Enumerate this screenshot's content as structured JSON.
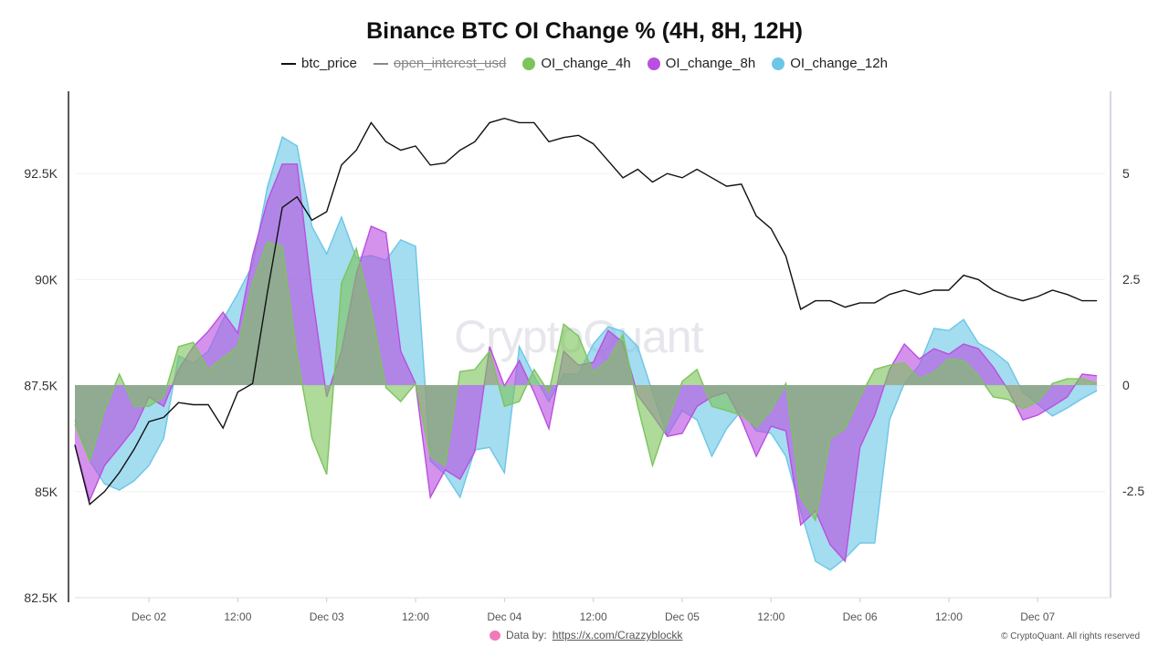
{
  "title": "Binance BTC OI Change % (4H, 8H, 12H)",
  "legend": [
    {
      "label": "btc_price",
      "kind": "line",
      "color": "#111111",
      "hidden": false
    },
    {
      "label": "open_interest_usd",
      "kind": "line",
      "color": "#888888",
      "hidden": true
    },
    {
      "label": "OI_change_4h",
      "kind": "dot",
      "color": "#7cc45c",
      "hidden": false
    },
    {
      "label": "OI_change_8h",
      "kind": "dot",
      "color": "#b94fe0",
      "hidden": false
    },
    {
      "label": "OI_change_12h",
      "kind": "dot",
      "color": "#6cc6e6",
      "hidden": false
    }
  ],
  "watermark": "CryptoQuant",
  "footer": {
    "data_by_label": "Data by:",
    "data_by_link": "https://x.com/Crazzyblockk",
    "copyright": "© CryptoQuant. All rights reserved"
  },
  "chart_data": {
    "type": "line+area",
    "title": "Binance BTC OI Change % (4H, 8H, 12H)",
    "x_ticks": [
      "Dec 02",
      "12:00",
      "Dec 03",
      "12:00",
      "Dec 04",
      "12:00",
      "Dec 05",
      "12:00",
      "Dec 06",
      "12:00",
      "Dec 07"
    ],
    "left_axis": {
      "ticks": [
        "82.5K",
        "85K",
        "87.5K",
        "90K",
        "92.5K"
      ],
      "tick_values": [
        82.5,
        85,
        87.5,
        90,
        92.5
      ],
      "ylim": [
        82.5,
        94.44
      ],
      "unit": "K USD"
    },
    "right_axis": {
      "ticks": [
        "-2.5",
        "0",
        "2.5",
        "5"
      ],
      "tick_values": [
        -2.5,
        0,
        2.5,
        5
      ],
      "ylim": [
        -5.02,
        6.94
      ]
    },
    "grid": true,
    "legend_position": "top",
    "x": [
      "12-01 14:00",
      "12-01 16:00",
      "12-01 18:00",
      "12-01 20:00",
      "12-01 22:00",
      "12-02 00:00",
      "12-02 02:00",
      "12-02 04:00",
      "12-02 06:00",
      "12-02 08:00",
      "12-02 10:00",
      "12-02 12:00",
      "12-02 14:00",
      "12-02 16:00",
      "12-02 18:00",
      "12-02 20:00",
      "12-02 22:00",
      "12-03 00:00",
      "12-03 02:00",
      "12-03 04:00",
      "12-03 06:00",
      "12-03 08:00",
      "12-03 10:00",
      "12-03 12:00",
      "12-03 14:00",
      "12-03 16:00",
      "12-03 18:00",
      "12-03 20:00",
      "12-03 22:00",
      "12-04 00:00",
      "12-04 02:00",
      "12-04 04:00",
      "12-04 06:00",
      "12-04 08:00",
      "12-04 10:00",
      "12-04 12:00",
      "12-04 14:00",
      "12-04 16:00",
      "12-04 18:00",
      "12-04 20:00",
      "12-04 22:00",
      "12-05 00:00",
      "12-05 02:00",
      "12-05 04:00",
      "12-05 06:00",
      "12-05 08:00",
      "12-05 10:00",
      "12-05 12:00",
      "12-05 14:00",
      "12-05 16:00",
      "12-05 18:00",
      "12-05 20:00",
      "12-05 22:00",
      "12-06 00:00",
      "12-06 02:00",
      "12-06 04:00",
      "12-06 06:00",
      "12-06 08:00",
      "12-06 10:00",
      "12-06 12:00",
      "12-06 14:00",
      "12-06 16:00",
      "12-06 18:00",
      "12-06 20:00",
      "12-06 22:00",
      "12-07 00:00",
      "12-07 02:00",
      "12-07 04:00",
      "12-07 06:00",
      "12-07 08:00"
    ],
    "series": [
      {
        "name": "OI_change_12h",
        "axis": "right",
        "style": "area",
        "color": "#6cc6e6",
        "values": [
          -0.82,
          -1.79,
          -2.33,
          -2.48,
          -2.26,
          -1.9,
          -1.25,
          0.69,
          0.52,
          0.8,
          1.55,
          2.16,
          2.84,
          4.68,
          5.86,
          5.65,
          3.75,
          3.1,
          3.97,
          3.0,
          3.06,
          2.95,
          3.43,
          3.28,
          -1.79,
          -2.11,
          -2.65,
          -1.53,
          -1.47,
          -2.07,
          0.91,
          0.22,
          -0.39,
          0.26,
          0.26,
          0.97,
          1.38,
          1.27,
          0.91,
          -0.17,
          -1.19,
          -0.6,
          -0.82,
          -1.68,
          -1.03,
          -0.6,
          -1.08,
          -1.14,
          -1.68,
          -2.97,
          -4.16,
          -4.37,
          -4.09,
          -3.73,
          -3.73,
          -0.82,
          0.04,
          0.47,
          1.34,
          1.29,
          1.55,
          0.99,
          0.8,
          0.52,
          -0.17,
          -0.45,
          -0.73,
          -0.54,
          -0.32,
          -0.13
        ]
      },
      {
        "name": "OI_change_8h",
        "axis": "right",
        "style": "area",
        "color": "#b94fe0",
        "values": [
          -1.4,
          -2.72,
          -1.9,
          -1.47,
          -1.03,
          -0.28,
          -0.5,
          0.37,
          0.91,
          1.27,
          1.72,
          1.23,
          3.06,
          4.35,
          5.22,
          5.22,
          2.2,
          -0.28,
          0.8,
          2.63,
          3.75,
          3.6,
          0.8,
          0.04,
          -2.65,
          -2.0,
          -2.22,
          -1.57,
          0.91,
          -0.02,
          0.58,
          -0.17,
          -1.03,
          0.8,
          0.47,
          0.54,
          1.29,
          1.01,
          -0.24,
          -0.71,
          -1.21,
          -1.14,
          -0.5,
          -0.28,
          -0.17,
          -0.82,
          -1.68,
          -0.97,
          -1.08,
          -3.3,
          -2.97,
          -3.77,
          -4.16,
          -1.47,
          -0.71,
          0.37,
          0.97,
          0.62,
          0.86,
          0.73,
          0.97,
          0.86,
          0.43,
          -0.11,
          -0.82,
          -0.71,
          -0.5,
          -0.28,
          0.26,
          0.22
        ]
      },
      {
        "name": "OI_change_4h",
        "axis": "right",
        "style": "area",
        "color": "#7cc45c",
        "values": [
          -0.93,
          -1.79,
          -0.6,
          0.26,
          -0.5,
          -0.5,
          -0.28,
          0.91,
          1.01,
          0.37,
          0.65,
          0.91,
          2.41,
          3.38,
          3.28,
          0.69,
          -1.25,
          -2.11,
          2.41,
          3.23,
          1.77,
          -0.06,
          -0.39,
          0.04,
          -1.68,
          -1.9,
          0.32,
          0.37,
          0.8,
          -0.5,
          -0.39,
          0.37,
          -0.17,
          1.44,
          1.16,
          0.3,
          0.58,
          1.19,
          -0.5,
          -1.9,
          -0.86,
          0.09,
          0.37,
          -0.5,
          -0.6,
          -0.71,
          -0.99,
          -0.6,
          0.04,
          -2.65,
          -3.19,
          -1.25,
          -1.03,
          -0.28,
          0.37,
          0.47,
          0.52,
          0.15,
          0.3,
          0.62,
          0.58,
          0.22,
          -0.28,
          -0.34,
          -0.56,
          -0.39,
          0.04,
          0.15,
          0.15,
          0.04
        ]
      },
      {
        "name": "btc_price",
        "axis": "left",
        "style": "line",
        "color": "#111111",
        "values": [
          86.1,
          84.7,
          85.0,
          85.45,
          86.0,
          86.65,
          86.75,
          87.1,
          87.05,
          87.05,
          86.5,
          87.35,
          87.55,
          89.7,
          91.7,
          91.95,
          91.4,
          91.6,
          92.7,
          93.05,
          93.7,
          93.25,
          93.05,
          93.15,
          92.7,
          92.75,
          93.05,
          93.25,
          93.7,
          93.8,
          93.7,
          93.7,
          93.25,
          93.35,
          93.4,
          93.2,
          92.8,
          92.4,
          92.6,
          92.3,
          92.5,
          92.4,
          92.6,
          92.4,
          92.2,
          92.25,
          91.5,
          91.2,
          90.55,
          89.3,
          89.5,
          89.5,
          89.35,
          89.45,
          89.45,
          89.65,
          89.75,
          89.65,
          89.75,
          89.75,
          90.1,
          90.0,
          89.75,
          89.6,
          89.5,
          89.6,
          89.75,
          89.65,
          89.5,
          89.5
        ]
      }
    ]
  }
}
